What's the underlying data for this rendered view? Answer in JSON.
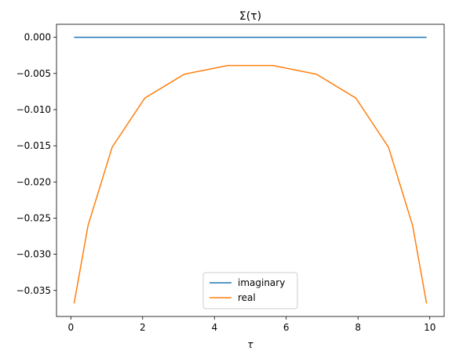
{
  "chart_data": {
    "type": "line",
    "title": "Σ(τ)",
    "xlabel": "τ",
    "x": [
      0.09,
      0.48,
      1.15,
      2.06,
      3.16,
      4.37,
      5.63,
      6.84,
      7.94,
      8.85,
      9.52,
      9.91
    ],
    "series": [
      {
        "name": "imaginary",
        "color": "#1f77b4",
        "values": [
          0,
          0,
          0,
          0,
          0,
          0,
          0,
          0,
          0,
          0,
          0,
          0
        ]
      },
      {
        "name": "real",
        "color": "#ff7f0e",
        "values": [
          -0.0368,
          -0.026,
          -0.0152,
          -0.0084,
          -0.0051,
          -0.0039,
          -0.0039,
          -0.0051,
          -0.0084,
          -0.0152,
          -0.026,
          -0.0368
        ]
      }
    ],
    "xlim": [
      -0.4,
      10.4
    ],
    "xticks": [
      0,
      2,
      4,
      6,
      8,
      10
    ],
    "ylim": [
      -0.0386,
      0.0018
    ],
    "yticks": [
      {
        "value": 0,
        "label": "0.000"
      },
      {
        "value": -0.005,
        "label": "−0.005"
      },
      {
        "value": -0.01,
        "label": "−0.010"
      },
      {
        "value": -0.015,
        "label": "−0.015"
      },
      {
        "value": -0.02,
        "label": "−0.020"
      },
      {
        "value": -0.025,
        "label": "−0.025"
      },
      {
        "value": -0.03,
        "label": "−0.030"
      },
      {
        "value": -0.035,
        "label": "−0.035"
      }
    ],
    "legend": "lower center"
  }
}
